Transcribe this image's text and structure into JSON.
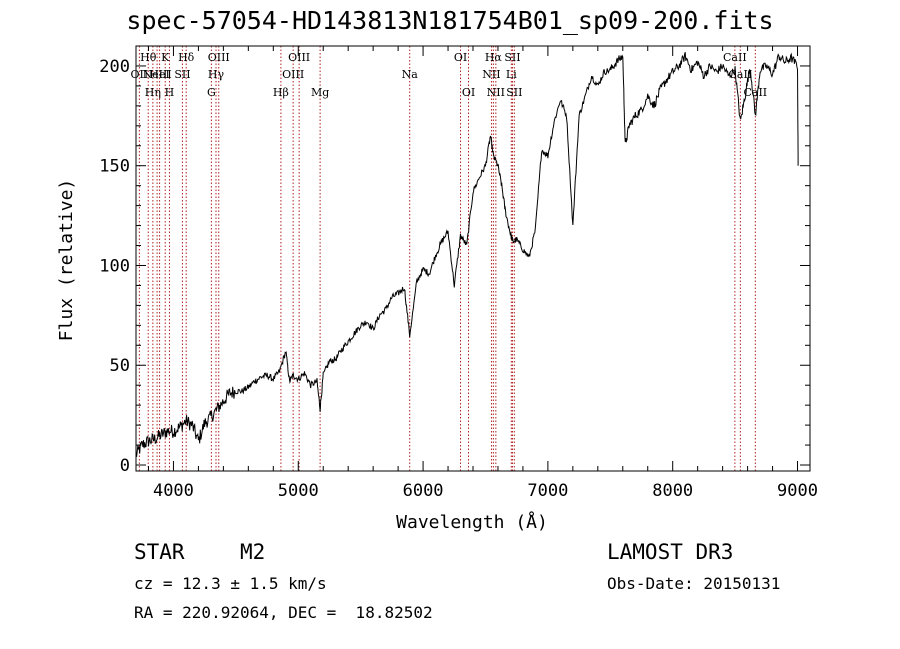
{
  "chart_data": {
    "type": "line",
    "title": "spec-57054-HD143813N181754B01_sp09-200.fits",
    "xlabel": "Wavelength (Å)",
    "ylabel": "Flux (relative)",
    "xlim": [
      3700,
      9100
    ],
    "ylim": [
      -3,
      210
    ],
    "xticks": [
      4000,
      5000,
      6000,
      7000,
      8000,
      9000
    ],
    "xtick_labels": [
      "4000",
      "5000",
      "6000",
      "7000",
      "8000",
      "9000"
    ],
    "yticks": [
      0,
      50,
      100,
      150,
      200
    ],
    "ytick_labels": [
      "0",
      "50",
      "100",
      "150",
      "200"
    ],
    "spectrum": {
      "name": "flux",
      "x": [
        3700,
        3750,
        3800,
        3850,
        3900,
        3950,
        4000,
        4050,
        4100,
        4150,
        4200,
        4250,
        4300,
        4350,
        4400,
        4450,
        4500,
        4550,
        4600,
        4650,
        4700,
        4750,
        4800,
        4850,
        4900,
        4930,
        4960,
        5000,
        5050,
        5100,
        5150,
        5175,
        5200,
        5250,
        5300,
        5350,
        5400,
        5450,
        5500,
        5550,
        5600,
        5650,
        5700,
        5750,
        5800,
        5850,
        5893,
        5950,
        6000,
        6050,
        6100,
        6150,
        6200,
        6250,
        6300,
        6350,
        6400,
        6450,
        6500,
        6540,
        6563,
        6600,
        6630,
        6660,
        6700,
        6720,
        6750,
        6800,
        6850,
        6900,
        6950,
        7000,
        7050,
        7100,
        7150,
        7200,
        7250,
        7300,
        7350,
        7400,
        7450,
        7500,
        7550,
        7600,
        7620,
        7650,
        7700,
        7750,
        7800,
        7850,
        7900,
        7950,
        8000,
        8050,
        8100,
        8150,
        8200,
        8250,
        8300,
        8350,
        8400,
        8450,
        8500,
        8542,
        8580,
        8620,
        8662,
        8700,
        8750,
        8800,
        8850,
        8900,
        8950,
        9000,
        9005
      ],
      "y": [
        5,
        10,
        12,
        13,
        15,
        17,
        17,
        19,
        22,
        20,
        12,
        21,
        24,
        28,
        32,
        36,
        37,
        37,
        39,
        42,
        44,
        45,
        43,
        47,
        57,
        42,
        45,
        43,
        46,
        40,
        42,
        28,
        45,
        52,
        53,
        58,
        62,
        66,
        70,
        72,
        68,
        75,
        78,
        84,
        86,
        89,
        65,
        92,
        98,
        96,
        105,
        112,
        117,
        90,
        115,
        110,
        137,
        144,
        150,
        165,
        155,
        150,
        140,
        127,
        116,
        112,
        113,
        108,
        104,
        118,
        158,
        155,
        172,
        183,
        175,
        120,
        175,
        185,
        195,
        190,
        197,
        198,
        202,
        205,
        160,
        170,
        175,
        178,
        185,
        180,
        188,
        193,
        197,
        200,
        205,
        198,
        202,
        195,
        200,
        197,
        200,
        195,
        198,
        172,
        185,
        200,
        175,
        198,
        200,
        196,
        205,
        202,
        204,
        200,
        150
      ]
    },
    "lines": [
      {
        "w": 3727,
        "label": "OII",
        "row": 1
      },
      {
        "w": 3798,
        "label": "Hθ",
        "row": 0
      },
      {
        "w": 3835,
        "label": "Hη",
        "row": 2
      },
      {
        "w": 3869,
        "label": "NeIII",
        "row": 1
      },
      {
        "w": 3889,
        "label": "HeI",
        "row": 1
      },
      {
        "w": 3934,
        "label": "K",
        "row": 0
      },
      {
        "w": 3968,
        "label": "H",
        "row": 2
      },
      {
        "w": 4072,
        "label": "SII",
        "row": 1
      },
      {
        "w": 4102,
        "label": "Hδ",
        "row": 0
      },
      {
        "w": 4304,
        "label": "G",
        "row": 2
      },
      {
        "w": 4341,
        "label": "Hγ",
        "row": 1
      },
      {
        "w": 4363,
        "label": "OIII",
        "row": 0
      },
      {
        "w": 4861,
        "label": "Hβ",
        "row": 2
      },
      {
        "w": 4959,
        "label": "OIII",
        "row": 1
      },
      {
        "w": 5007,
        "label": "OIII",
        "row": 0
      },
      {
        "w": 5175,
        "label": "Mg",
        "row": 2
      },
      {
        "w": 5893,
        "label": "Na",
        "row": 1
      },
      {
        "w": 6300,
        "label": "OI",
        "row": 0
      },
      {
        "w": 6364,
        "label": "OI",
        "row": 2
      },
      {
        "w": 6548,
        "label": "NII",
        "row": 1
      },
      {
        "w": 6563,
        "label": "Hα",
        "row": 0
      },
      {
        "w": 6583,
        "label": "NII",
        "row": 2
      },
      {
        "w": 6707,
        "label": "Li",
        "row": 1
      },
      {
        "w": 6716,
        "label": "SII",
        "row": 0
      },
      {
        "w": 6731,
        "label": "SII",
        "row": 2
      },
      {
        "w": 8498,
        "label": "CaII",
        "row": 0
      },
      {
        "w": 8542,
        "label": "CaII",
        "row": 1
      },
      {
        "w": 8662,
        "label": "CaII",
        "row": 2
      }
    ]
  },
  "info": {
    "class": "STAR",
    "subclass": "M2",
    "survey": "LAMOST DR3",
    "cz": "cz = 12.3 ± 1.5 km/s",
    "obs_date": "Obs-Date: 20150131",
    "radec": "RA = 220.92064, DEC =  18.82502"
  },
  "colors": {
    "spectrum": "#000000",
    "line_marker": "#b22222",
    "axis": "#000000"
  }
}
